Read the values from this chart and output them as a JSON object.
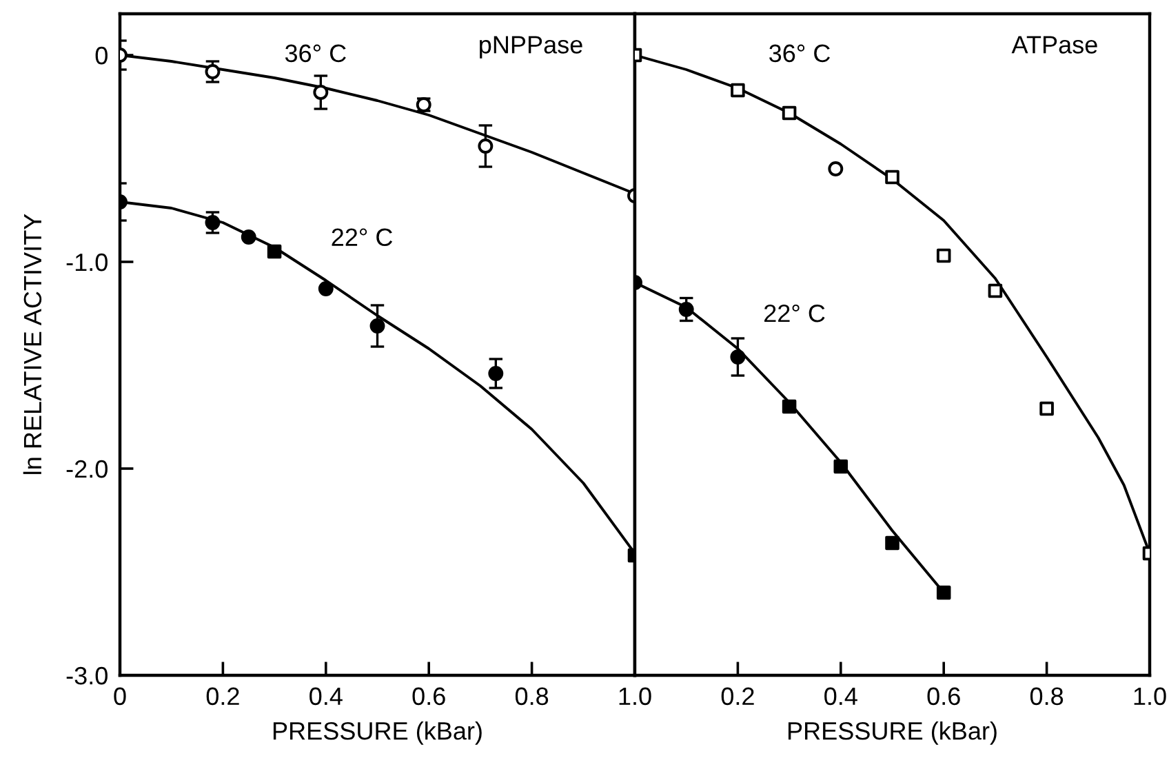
{
  "chart_data": [
    {
      "type": "scatter",
      "title": "pNPPase",
      "xlabel": "PRESSURE (kBar)",
      "ylabel": "ln RELATIVE ACTIVITY",
      "xlim": [
        0,
        1.0
      ],
      "ylim": [
        -3.0,
        0.2
      ],
      "xticks": [
        0,
        0.2,
        0.4,
        0.6,
        0.8,
        {
          "value": 1.0,
          "label": "1.0"
        }
      ],
      "yticks": [
        {
          "value": -3.0,
          "label": "-3.0"
        },
        {
          "value": -2.0,
          "label": "-2.0"
        },
        {
          "value": -1.0,
          "label": "-1.0"
        },
        0
      ],
      "annotations": [
        "36° C",
        "22° C"
      ],
      "series": [
        {
          "type": "line",
          "color": "#000000",
          "line_style": "solid",
          "x": [
            0,
            0.1,
            0.2,
            0.3,
            0.4,
            0.5,
            0.6,
            0.7,
            0.8,
            0.9,
            1.0
          ],
          "values": [
            0,
            -0.03,
            -0.07,
            -0.11,
            -0.16,
            -0.22,
            -0.29,
            -0.38,
            -0.47,
            -0.57,
            -0.67
          ]
        },
        {
          "type": "line",
          "color": "#000000",
          "line_style": "solid",
          "x": [
            0,
            0.1,
            0.2,
            0.3,
            0.4,
            0.5,
            0.6,
            0.7,
            0.8,
            0.9,
            1.0
          ],
          "values": [
            -0.71,
            -0.74,
            -0.81,
            -0.93,
            -1.09,
            -1.26,
            -1.42,
            -1.6,
            -1.81,
            -2.07,
            -2.41
          ]
        },
        {
          "color": "#ffffff",
          "marker": "circle",
          "x": [
            0,
            0.18,
            0.39,
            0.59,
            0.71,
            1.0
          ],
          "values": [
            0,
            -0.08,
            -0.18,
            -0.24,
            -0.44,
            -0.68
          ],
          "errors": [
            0.07,
            0.05,
            0.08,
            0.03,
            0.1,
            null
          ]
        },
        {
          "color": "#000000",
          "marker": "circle",
          "x": [
            0,
            0.18,
            0.25,
            0.4,
            0.5,
            0.73
          ],
          "values": [
            -0.71,
            -0.81,
            -0.88,
            -1.13,
            -1.31,
            -1.54
          ],
          "errors": [
            0.09,
            0.05,
            null,
            null,
            0.1,
            0.07
          ]
        },
        {
          "color": "#000000",
          "marker": "square",
          "x": [
            0.3,
            1.0
          ],
          "values": [
            -0.95,
            -2.42
          ]
        }
      ]
    },
    {
      "type": "scatter",
      "title": "ATPase",
      "xlabel": "PRESSURE (kBar)",
      "xlim": [
        0,
        1.0
      ],
      "ylim": [
        -3.0,
        0.2
      ],
      "tick_labels": "x",
      "xticks": [
        0.2,
        0.4,
        0.6,
        0.8,
        {
          "value": 1.0,
          "label": "1.0"
        }
      ],
      "annotations": [
        "36° C",
        "22° C"
      ],
      "series": [
        {
          "type": "line",
          "color": "#000000",
          "line_style": "solid",
          "x": [
            0,
            0.1,
            0.2,
            0.3,
            0.4,
            0.5,
            0.6,
            0.7,
            0.8,
            0.9,
            0.95,
            1.0
          ],
          "values": [
            0,
            -0.07,
            -0.16,
            -0.28,
            -0.43,
            -0.6,
            -0.8,
            -1.08,
            -1.46,
            -1.85,
            -2.08,
            -2.41
          ]
        },
        {
          "type": "line",
          "color": "#000000",
          "line_style": "solid",
          "x": [
            0,
            0.1,
            0.2,
            0.3,
            0.4,
            0.5,
            0.6
          ],
          "values": [
            -1.1,
            -1.22,
            -1.42,
            -1.68,
            -1.97,
            -2.3,
            -2.6
          ]
        },
        {
          "color": "#ffffff",
          "marker": "square",
          "x": [
            0,
            0.2,
            0.3,
            0.5,
            0.6,
            0.7,
            0.8,
            1.0
          ],
          "values": [
            0,
            -0.17,
            -0.28,
            -0.59,
            -0.97,
            -1.14,
            -1.71,
            -2.41
          ]
        },
        {
          "color": "#ffffff",
          "marker": "circle",
          "x": [
            0.39
          ],
          "values": [
            -0.55
          ]
        },
        {
          "color": "#000000",
          "marker": "circle",
          "x": [
            0,
            0.1,
            0.2
          ],
          "values": [
            -1.1,
            -1.23,
            -1.46
          ],
          "errors": [
            null,
            0.055,
            0.09
          ]
        },
        {
          "color": "#000000",
          "marker": "square",
          "x": [
            0.3,
            0.4,
            0.5,
            0.6
          ],
          "values": [
            -1.7,
            -1.99,
            -2.36,
            -2.6
          ]
        }
      ]
    }
  ]
}
